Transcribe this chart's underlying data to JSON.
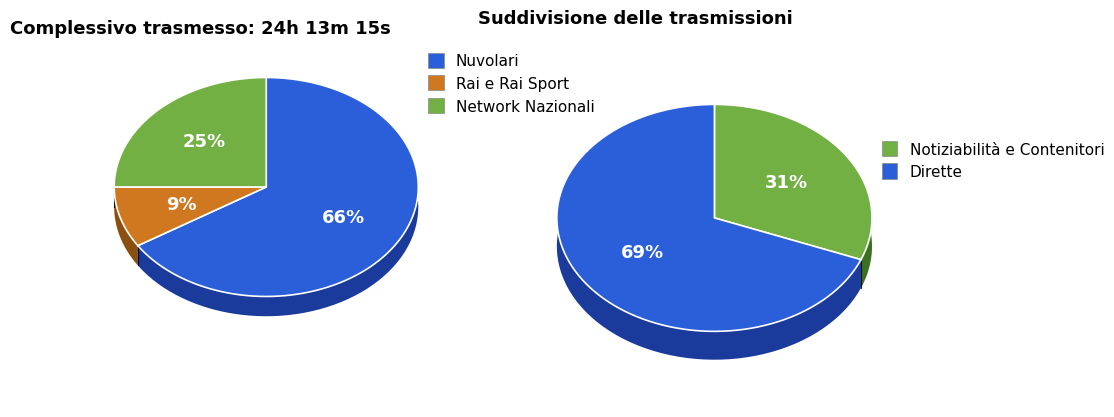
{
  "chart1_title": "Complessivo trasmesso: 24h 13m 15s",
  "chart1_values": [
    66,
    9,
    25
  ],
  "chart1_labels": [
    "66%",
    "9%",
    "25%"
  ],
  "chart1_colors": [
    "#2B5FD9",
    "#D07820",
    "#72B044"
  ],
  "chart1_legend": [
    "Nuvolari",
    "Rai e Rai Sport",
    "Network Nazionali"
  ],
  "chart1_shadow_colors": [
    "#1A3A9C",
    "#8B5010",
    "#3A7020"
  ],
  "chart1_startangle": 90,
  "chart2_title": "Suddivisione delle trasmissioni",
  "chart2_values": [
    31,
    69
  ],
  "chart2_labels": [
    "31%",
    "69%"
  ],
  "chart2_colors": [
    "#72B044",
    "#2B5FD9"
  ],
  "chart2_legend": [
    "Notiziabilità e Contenitori",
    "Dirette"
  ],
  "chart2_shadow_colors": [
    "#3A7020",
    "#1A3A9C"
  ],
  "chart2_startangle": 90,
  "bg_color": "#FFFFFF",
  "title_fontsize": 13,
  "label_fontsize": 13,
  "legend_fontsize": 11
}
